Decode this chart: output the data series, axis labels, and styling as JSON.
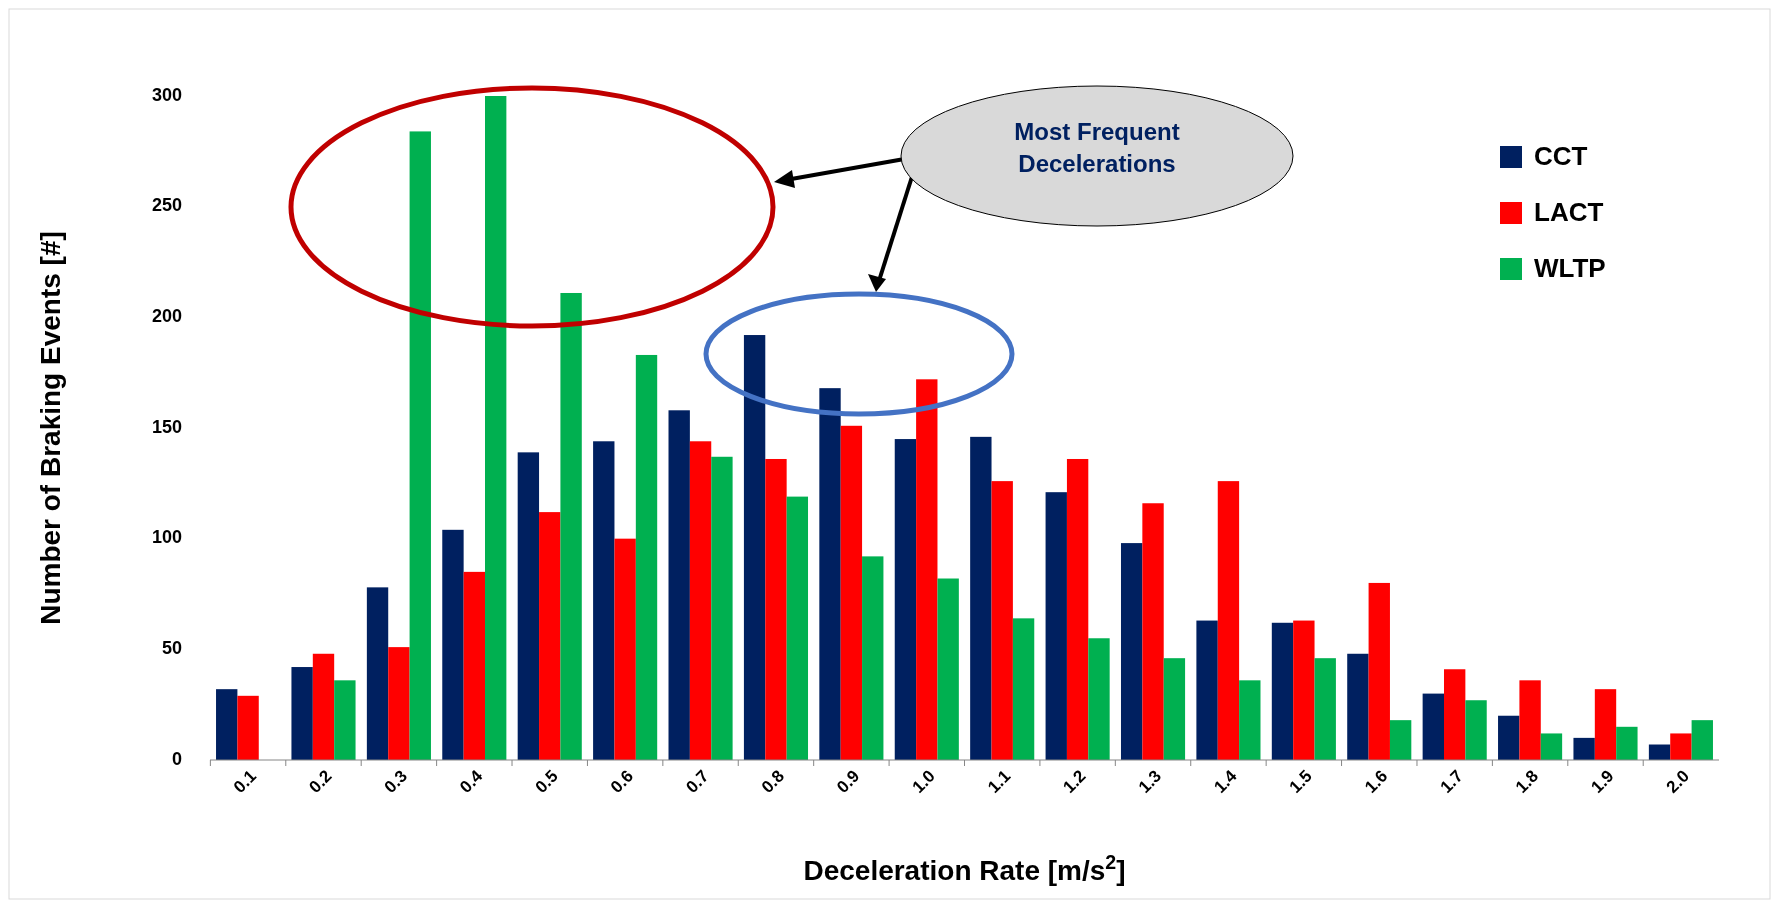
{
  "chart_data": {
    "type": "bar",
    "xlabel": "Deceleration Rate [m/s$^{2}$]",
    "ylabel": "Number of Braking Events [#]",
    "categories": [
      "0.1",
      "0.2",
      "0.3",
      "0.4",
      "0.5",
      "0.6",
      "0.7",
      "0.8",
      "0.9",
      "1.0",
      "1.1",
      "1.2",
      "1.3",
      "1.4",
      "1.5",
      "1.6",
      "1.7",
      "1.8",
      "1.9",
      "2.0"
    ],
    "series": [
      {
        "name": "CCT",
        "color": "#002060",
        "values": [
          32,
          42,
          78,
          104,
          139,
          144,
          158,
          192,
          168,
          145,
          146,
          121,
          98,
          63,
          62,
          48,
          30,
          20,
          10,
          7
        ]
      },
      {
        "name": "LACT",
        "color": "#ff0000",
        "values": [
          29,
          48,
          51,
          85,
          112,
          100,
          144,
          136,
          151,
          172,
          126,
          136,
          116,
          126,
          63,
          80,
          41,
          36,
          32,
          12
        ]
      },
      {
        "name": "WLTP",
        "color": "#00b050",
        "values": [
          null,
          36,
          284,
          300,
          211,
          183,
          137,
          119,
          92,
          82,
          64,
          55,
          46,
          36,
          46,
          18,
          27,
          12,
          15,
          18
        ]
      }
    ],
    "ylim": [
      0,
      300
    ],
    "yticks": [
      0,
      50,
      100,
      150,
      200,
      250,
      300
    ],
    "grid": false,
    "legend": "top right",
    "annotations": [
      "Most Frequent Decelerations"
    ]
  }
}
